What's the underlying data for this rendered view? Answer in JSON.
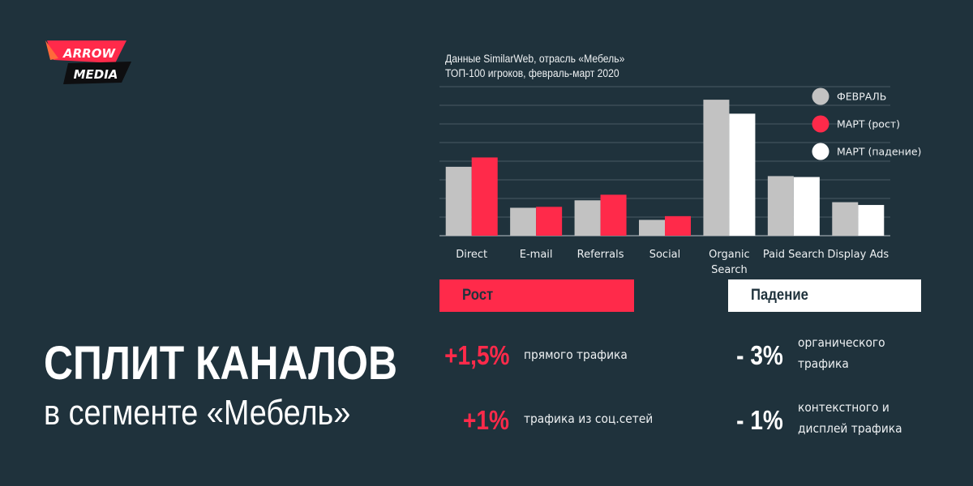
{
  "logo": {
    "line1": "ARROW",
    "line2": "MEDIA"
  },
  "title": {
    "main": "СПЛИТ КАНАЛОВ",
    "sub": "в сегменте «Мебель»"
  },
  "chart_data": {
    "type": "bar",
    "title": "Данные SimilarWeb, отрасль «Мебель»",
    "subtitle": "ТОП-100 игроков, февраль-март 2020",
    "categories": [
      "Direct",
      "E-mail",
      "Referrals",
      "Social",
      "Organic Search",
      "Paid Search",
      "Display Ads"
    ],
    "category_lines": [
      [
        "Direct"
      ],
      [
        "E-mail"
      ],
      [
        "Referrals"
      ],
      [
        "Social"
      ],
      [
        "Organic",
        "Search"
      ],
      [
        "Paid Search"
      ],
      [
        "Display Ads"
      ]
    ],
    "series": [
      {
        "name": "ФЕВРАЛЬ",
        "values": [
          3.7,
          1.5,
          1.9,
          0.85,
          7.3,
          3.2,
          1.8
        ]
      },
      {
        "name": "МАРТ (рост)",
        "values": [
          4.2,
          1.55,
          2.2,
          1.05,
          null,
          null,
          null
        ]
      },
      {
        "name": "МАРТ (падение)",
        "values": [
          null,
          null,
          null,
          null,
          6.55,
          3.15,
          1.65
        ]
      }
    ],
    "colors": {
      "ФЕВРАЛЬ": "#c2c2c2",
      "МАРТ (рост)": "#ff2a4a",
      "МАРТ (падение)": "#ffffff"
    },
    "ylim": [
      0,
      8
    ],
    "grid": true,
    "legend_position": "top-right",
    "xlabel": "",
    "ylabel": ""
  },
  "growth": {
    "header": "Рост",
    "items": [
      {
        "value": "+1,5%",
        "desc": [
          "прямого трафика"
        ]
      },
      {
        "value": "+1%",
        "desc": [
          "трафика из соц.сетей"
        ]
      }
    ]
  },
  "decline": {
    "header": "Падение",
    "items": [
      {
        "value": "- 3%",
        "desc": [
          "органического",
          "трафика"
        ]
      },
      {
        "value": "- 1%",
        "desc": [
          "контекстного и",
          "дисплей трафика"
        ]
      }
    ]
  },
  "colors": {
    "background": "#1f323c",
    "accent": "#ff2a4a",
    "neutral": "#c2c2c2",
    "white": "#ffffff"
  }
}
